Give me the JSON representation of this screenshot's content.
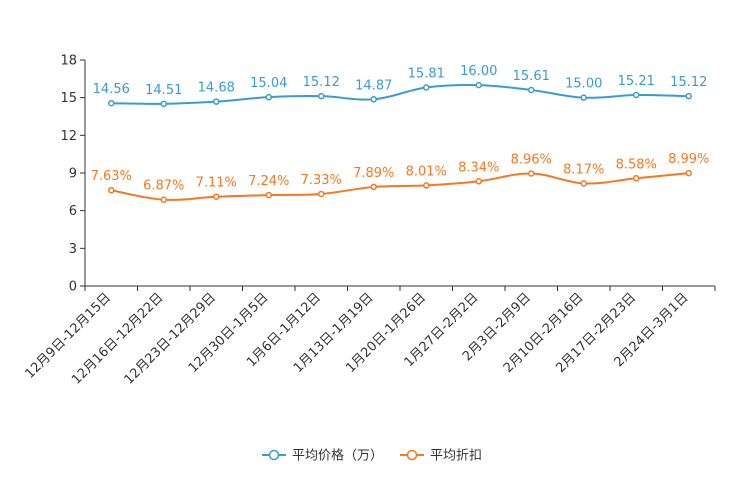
{
  "chart_data": {
    "type": "line",
    "categories": [
      "12月9日-12月15日",
      "12月16日-12月22日",
      "12月23日-12月29日",
      "12月30日-1月5日",
      "1月6日-1月12日",
      "1月13日-1月19日",
      "1月20日-1月26日",
      "1月27日-2月2日",
      "2月3日-2月9日",
      "2月10日-2月16日",
      "2月17日-2月23日",
      "2月24日-3月1日"
    ],
    "ylim": [
      0,
      18
    ],
    "yticks": [
      0,
      3,
      6,
      9,
      12,
      15,
      18
    ],
    "series": [
      {
        "name": "平均价格（万）",
        "color": "#3a9bd0",
        "values": [
          14.56,
          14.51,
          14.68,
          15.04,
          15.12,
          14.87,
          15.81,
          16.0,
          15.61,
          15.0,
          15.21,
          15.12
        ],
        "labels": [
          "14.56",
          "14.51",
          "14.68",
          "15.04",
          "15.12",
          "14.87",
          "15.81",
          "16.00",
          "15.61",
          "15.00",
          "15.21",
          "15.12"
        ]
      },
      {
        "name": "平均折扣",
        "color": "#f47920",
        "values": [
          7.63,
          6.87,
          7.11,
          7.24,
          7.33,
          7.89,
          8.01,
          8.34,
          8.96,
          8.17,
          8.58,
          8.99
        ],
        "labels": [
          "7.63%",
          "6.87%",
          "7.11%",
          "7.24%",
          "7.33%",
          "7.89%",
          "8.01%",
          "8.34%",
          "8.96%",
          "8.17%",
          "8.58%",
          "8.99%"
        ]
      }
    ]
  }
}
